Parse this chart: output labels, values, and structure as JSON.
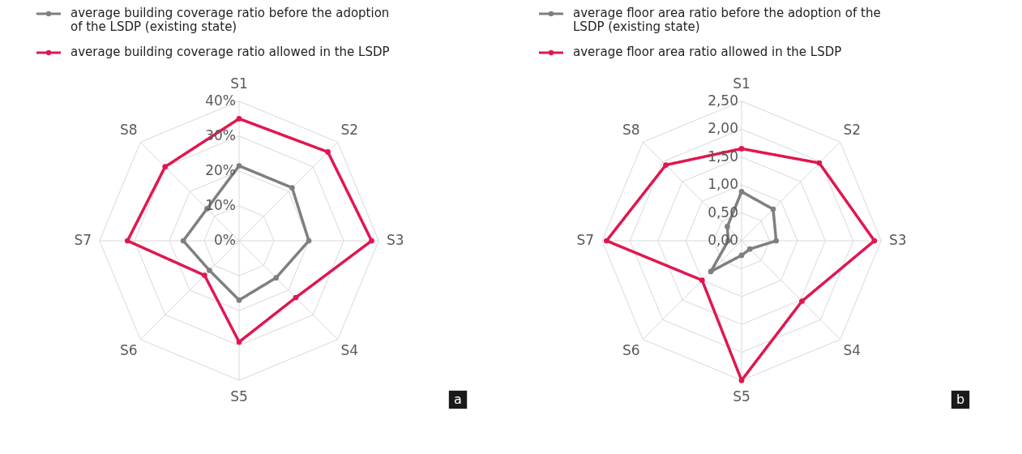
{
  "chart_data": [
    {
      "type": "radar",
      "categories": [
        "S1",
        "S2",
        "S3",
        "S4",
        "S5",
        "S6",
        "S7",
        "S8"
      ],
      "series": [
        {
          "name": "average building coverage ratio before the adoption of the LSDP (existing state)",
          "color": "#7f7f7f",
          "values": [
            21.5,
            21.5,
            20,
            15,
            17,
            12,
            16,
            13
          ]
        },
        {
          "name": "average building coverage ratio allowed in the LSDP",
          "color": "#e0174f",
          "values": [
            35,
            36,
            38,
            23,
            29,
            14,
            32,
            30
          ]
        }
      ],
      "ylim": [
        0,
        40
      ],
      "yticks": [
        {
          "value": 0,
          "label": "0%"
        },
        {
          "value": 10,
          "label": "10%"
        },
        {
          "value": 20,
          "label": "20%"
        },
        {
          "value": 30,
          "label": "30%"
        },
        {
          "value": 40,
          "label": "40%"
        }
      ],
      "grid": true,
      "legend": "top",
      "marker": "circle",
      "annotations": [
        "a"
      ]
    },
    {
      "type": "radar",
      "categories": [
        "S1",
        "S2",
        "S3",
        "S4",
        "S5",
        "S6",
        "S7",
        "S8"
      ],
      "series": [
        {
          "name": "average floor area ratio before the adoption of the LSDP (existing state)",
          "color": "#7f7f7f",
          "values": [
            0.88,
            0.8,
            0.62,
            0.21,
            0.26,
            0.78,
            0.24,
            0.36
          ]
        },
        {
          "name": "average floor area ratio allowed in the LSDP",
          "color": "#e0174f",
          "values": [
            1.65,
            1.97,
            2.38,
            1.53,
            2.5,
            1.0,
            2.42,
            1.92
          ]
        }
      ],
      "ylim": [
        0,
        2.5
      ],
      "yticks": [
        {
          "value": 0,
          "label": "0,00"
        },
        {
          "value": 0.5,
          "label": "0,50"
        },
        {
          "value": 1,
          "label": "1,00"
        },
        {
          "value": 1.5,
          "label": "1,50"
        },
        {
          "value": 2,
          "label": "2,00"
        },
        {
          "value": 2.5,
          "label": "2,50"
        }
      ],
      "grid": true,
      "legend": "top",
      "marker": "circle",
      "annotations": [
        "b"
      ]
    }
  ]
}
